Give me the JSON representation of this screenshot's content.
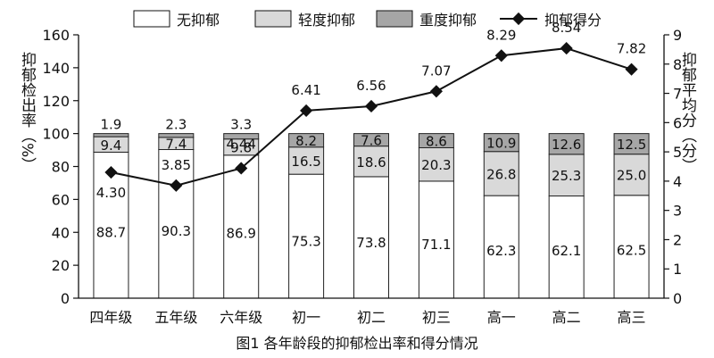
{
  "chart_data": {
    "type": "bar+line",
    "title": "",
    "caption": "图1 各年龄段的抑郁检出率和得分情况",
    "categories": [
      "四年级",
      "五年级",
      "六年级",
      "初一",
      "初二",
      "初三",
      "高一",
      "高二",
      "高三"
    ],
    "series": [
      {
        "name": "无抑郁",
        "type": "stacked-bar",
        "values": [
          88.7,
          90.3,
          86.9,
          75.3,
          73.8,
          71.1,
          62.3,
          62.1,
          62.5
        ],
        "color": "#ffffff"
      },
      {
        "name": "轻度抑郁",
        "type": "stacked-bar",
        "values": [
          9.4,
          7.4,
          9.8,
          16.5,
          18.6,
          20.3,
          26.8,
          25.3,
          25.0
        ],
        "color": "#d9d9d9"
      },
      {
        "name": "重度抑郁",
        "type": "stacked-bar",
        "values": [
          1.9,
          2.3,
          3.3,
          8.2,
          7.6,
          8.6,
          10.9,
          12.6,
          12.5
        ],
        "color": "#a6a6a6"
      },
      {
        "name": "抑郁得分",
        "type": "line",
        "values": [
          4.3,
          3.85,
          4.44,
          6.41,
          6.56,
          7.07,
          8.29,
          8.54,
          7.82
        ],
        "color": "#111111",
        "axis": "right"
      }
    ],
    "y_left": {
      "label": "抑郁检出率（%）",
      "ticks": [
        0,
        20,
        40,
        60,
        80,
        100,
        120,
        140,
        160
      ],
      "ylim": [
        0,
        160
      ]
    },
    "y_right": {
      "label": "抑郁平均分（分）",
      "ticks": [
        0,
        1,
        2,
        3,
        4,
        5,
        6,
        7,
        8,
        9
      ],
      "ylim": [
        0,
        9
      ]
    },
    "legend": {
      "placement": "top",
      "items": [
        "无抑郁",
        "轻度抑郁",
        "重度抑郁",
        "抑郁得分"
      ]
    },
    "grid": false
  }
}
